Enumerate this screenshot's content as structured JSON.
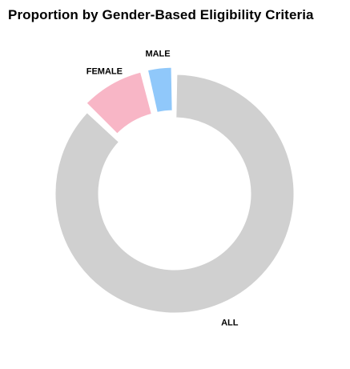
{
  "chart_data": {
    "type": "pie",
    "title": "Proportion by Gender-Based Eligibility Criteria",
    "donut": true,
    "exploded": true,
    "slices": [
      {
        "label": "ALL",
        "value": 87.2,
        "color": "#d0d0d0"
      },
      {
        "label": "FEMALE",
        "value": 9.0,
        "color": "#f8b6c6"
      },
      {
        "label": "MALE",
        "value": 3.8,
        "color": "#90c8fa"
      }
    ],
    "legend": "none",
    "grid": false
  }
}
